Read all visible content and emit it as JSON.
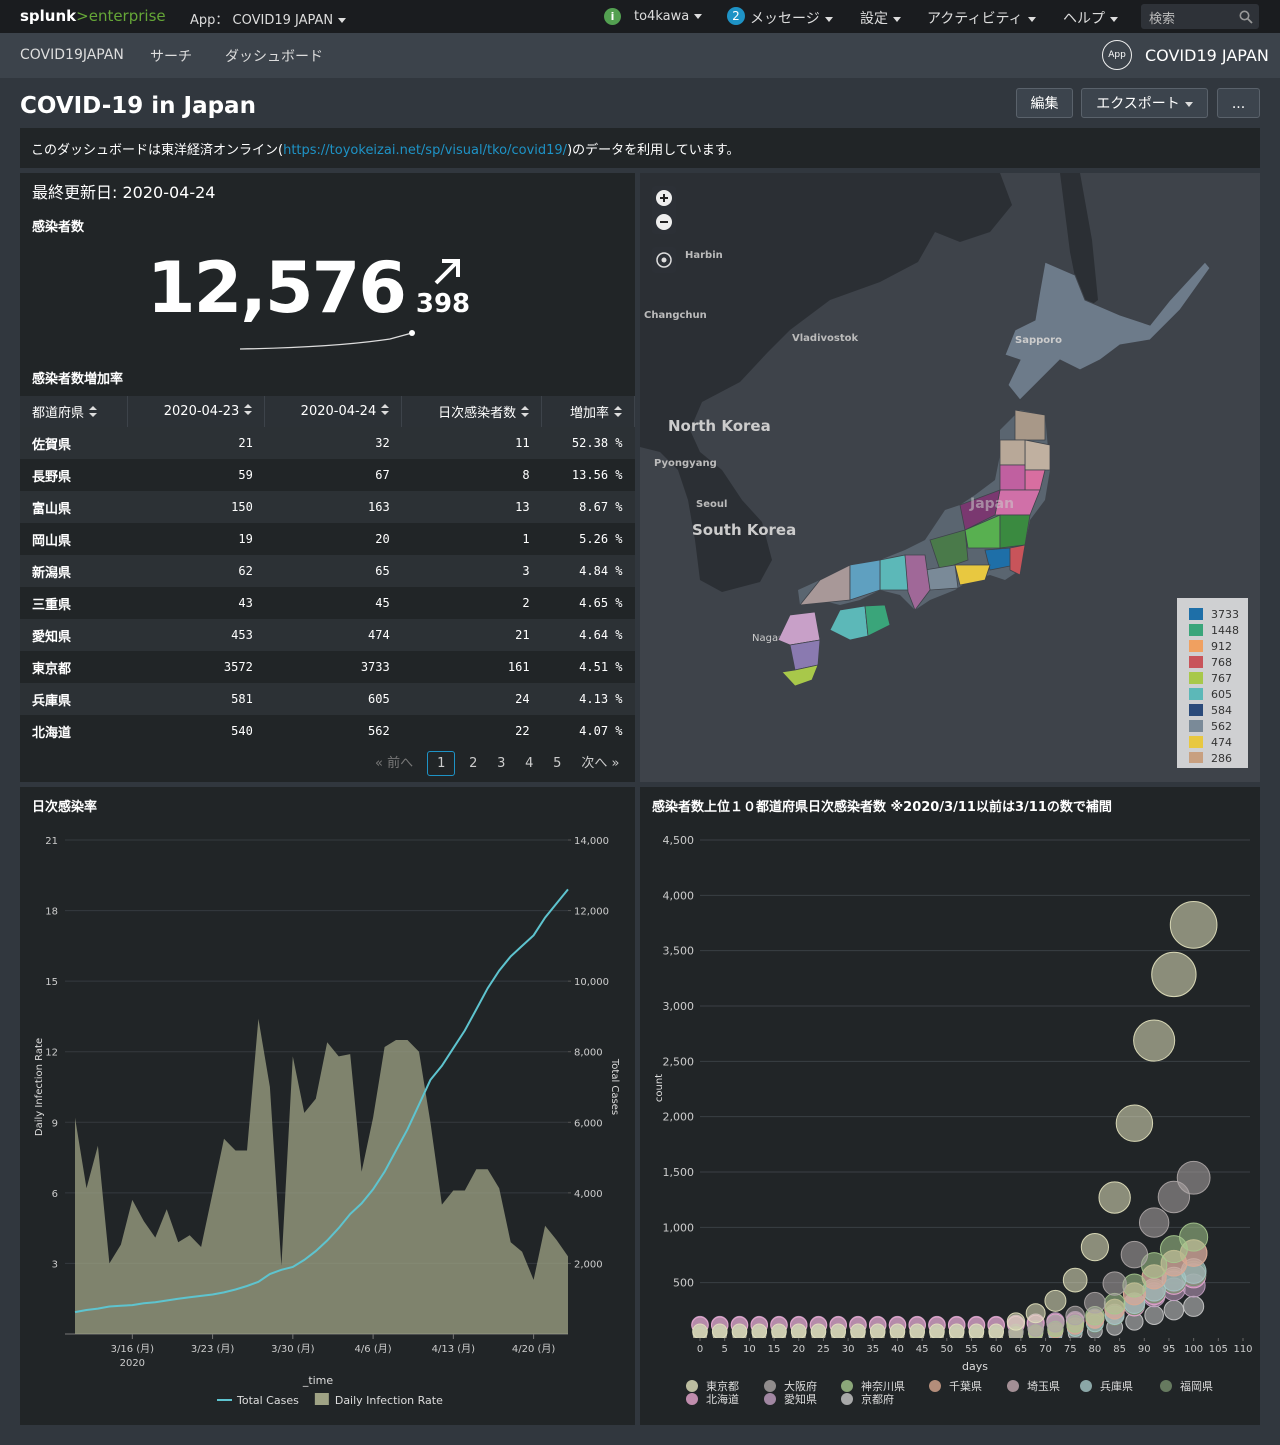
{
  "nav": {
    "logo": [
      "splunk",
      ">enterprise"
    ],
    "app_menu": "App： COVID19 JAPAN",
    "user": "to4kawa",
    "message_count": "2",
    "messages": "メッセージ",
    "settings": "設定",
    "activity": "アクティビティ",
    "help": "ヘルプ",
    "search": "検索"
  },
  "app_bar": {
    "app_name": "COVID19JAPAN",
    "links": [
      "サーチ",
      "ダッシュボード"
    ],
    "app_icon": "App",
    "app_title": "COVID19 JAPAN"
  },
  "header": {
    "title": "COVID-19 in Japan",
    "buttons": [
      "編集",
      "エクスポート",
      "..."
    ]
  },
  "description": {
    "before": "このダッシュボードは東洋経済オンライン(",
    "link": "https://toyokeizai.net/sp/visual/tko/covid19/",
    "after": ")のデータを利用しています。"
  },
  "summary": {
    "updated": "最終更新日: 2020-04-24",
    "label": "感染者数",
    "value": "12,576",
    "delta": "398"
  },
  "table": {
    "title": "感染者数増加率",
    "columns": [
      "都道府県",
      "2020-04-23",
      "2020-04-24",
      "日次感染者数",
      "増加率"
    ],
    "rows": [
      [
        "佐賀県",
        21,
        32,
        11,
        "52.38 %"
      ],
      [
        "長野県",
        59,
        67,
        8,
        "13.56 %"
      ],
      [
        "富山県",
        150,
        163,
        13,
        "8.67 %"
      ],
      [
        "岡山県",
        19,
        20,
        1,
        "5.26 %"
      ],
      [
        "新潟県",
        62,
        65,
        3,
        "4.84 %"
      ],
      [
        "三重県",
        43,
        45,
        2,
        "4.65 %"
      ],
      [
        "愛知県",
        453,
        474,
        21,
        "4.64 %"
      ],
      [
        "東京都",
        3572,
        3733,
        161,
        "4.51 %"
      ],
      [
        "兵庫県",
        581,
        605,
        24,
        "4.13 %"
      ],
      [
        "北海道",
        540,
        562,
        22,
        "4.07 %"
      ]
    ],
    "pagination": {
      "prev": "« 前へ",
      "pages": [
        "1",
        "2",
        "3",
        "4",
        "5"
      ],
      "next": "次へ »"
    }
  },
  "map": {
    "labels": [
      "Harbin",
      "Changchun",
      "Vladivostok",
      "North Korea",
      "Pyongyang",
      "Seoul",
      "South Korea",
      "Japan",
      "Sapporo",
      "Nagasaki"
    ],
    "legend": [
      {
        "value": 3733,
        "color": "#1e6fa8"
      },
      {
        "value": 1448,
        "color": "#3aa57a"
      },
      {
        "value": 912,
        "color": "#f0a060"
      },
      {
        "value": 768,
        "color": "#c8545a"
      },
      {
        "value": 767,
        "color": "#a8c84a"
      },
      {
        "value": 605,
        "color": "#5cb8b8"
      },
      {
        "value": 584,
        "color": "#2a4a7a"
      },
      {
        "value": 562,
        "color": "#7a8a98"
      },
      {
        "value": 474,
        "color": "#e8c840"
      },
      {
        "value": 286,
        "color": "#c8a080"
      }
    ]
  },
  "chart_data": [
    {
      "type": "combo",
      "title": "日次感染率",
      "categories": [
        "2020-03-11",
        "2020-03-12",
        "2020-03-13",
        "2020-03-14",
        "2020-03-15",
        "2020-03-16",
        "2020-03-17",
        "2020-03-18",
        "2020-03-19",
        "2020-03-20",
        "2020-03-21",
        "2020-03-22",
        "2020-03-23",
        "2020-03-24",
        "2020-03-25",
        "2020-03-26",
        "2020-03-27",
        "2020-03-28",
        "2020-03-29",
        "2020-03-30",
        "2020-03-31",
        "2020-04-01",
        "2020-04-02",
        "2020-04-03",
        "2020-04-04",
        "2020-04-05",
        "2020-04-06",
        "2020-04-07",
        "2020-04-08",
        "2020-04-09",
        "2020-04-10",
        "2020-04-11",
        "2020-04-12",
        "2020-04-13",
        "2020-04-14",
        "2020-04-15",
        "2020-04-16",
        "2020-04-17",
        "2020-04-18",
        "2020-04-19",
        "2020-04-20",
        "2020-04-21",
        "2020-04-22",
        "2020-04-23"
      ],
      "series": [
        {
          "name": "Total Cases",
          "color": "#5ec4cf",
          "kind": "line",
          "axis": "y2",
          "values": [
            620,
            680,
            720,
            780,
            800,
            820,
            870,
            900,
            950,
            1000,
            1040,
            1080,
            1120,
            1180,
            1260,
            1360,
            1480,
            1700,
            1820,
            1900,
            2100,
            2350,
            2650,
            3000,
            3400,
            3700,
            4100,
            4600,
            5200,
            5800,
            6500,
            7200,
            7600,
            8100,
            8600,
            9200,
            9800,
            10300,
            10700,
            11000,
            11300,
            11800,
            12200,
            12600
          ]
        },
        {
          "name": "Daily Infection Rate",
          "color": "#9fa385",
          "kind": "area",
          "values": [
            9.2,
            6.2,
            8.0,
            3.0,
            3.8,
            5.7,
            4.8,
            4.1,
            5.3,
            3.9,
            4.2,
            3.7,
            6.0,
            8.3,
            7.8,
            7.8,
            13.4,
            10.5,
            2.9,
            11.8,
            9.4,
            10.0,
            12.4,
            11.8,
            11.9,
            6.9,
            9.2,
            12.2,
            12.5,
            12.5,
            12.0,
            9.0,
            5.5,
            6.1,
            6.1,
            7.0,
            7.0,
            6.2,
            3.9,
            3.5,
            2.3,
            4.6,
            4.0,
            3.3
          ]
        }
      ],
      "ylim": [
        0,
        21
      ],
      "yticks": [
        3,
        6,
        9,
        12,
        15,
        18,
        21
      ],
      "y2lim": [
        0,
        14000
      ],
      "y2ticks": [
        {
          "value": 2000,
          "label": "2,000"
        },
        {
          "value": 4000,
          "label": "4,000"
        },
        {
          "value": 6000,
          "label": "6,000"
        },
        {
          "value": 8000,
          "label": "8,000"
        },
        {
          "value": 10000,
          "label": "10,000"
        },
        {
          "value": 12000,
          "label": "12,000"
        },
        {
          "value": 14000,
          "label": "14,000"
        }
      ],
      "xticks": [
        {
          "value": "2020-03-16",
          "label": "3/16 (月)"
        },
        {
          "value": "2020-03-23",
          "label": "3/23 (月)"
        },
        {
          "value": "2020-03-30",
          "label": "3/30 (月)"
        },
        {
          "value": "2020-04-06",
          "label": "4/6 (月)"
        },
        {
          "value": "2020-04-13",
          "label": "4/13 (月)"
        },
        {
          "value": "2020-04-20",
          "label": "4/20 (月)"
        }
      ],
      "xtick_year": "2020",
      "ylabel": "Daily Infection Rate",
      "y2label": "Total Cases",
      "xlabel": "_time",
      "grid": true
    },
    {
      "type": "bubble",
      "title": "感染者数上位１０都道府県日次感染者数 ※2020/3/11以前は3/11の数で補間",
      "x": [
        0,
        4,
        8,
        12,
        16,
        20,
        24,
        28,
        32,
        36,
        40,
        44,
        48,
        52,
        56,
        60,
        64,
        68,
        72,
        76,
        80,
        84,
        88,
        92,
        96,
        100
      ],
      "series": [
        {
          "name": "東京都",
          "color": "#e4e3bf",
          "values": [
            60,
            60,
            60,
            60,
            60,
            60,
            60,
            60,
            60,
            60,
            60,
            60,
            60,
            60,
            60,
            60,
            149,
            224,
            336,
            523,
            821,
            1269,
            1941,
            2688,
            3285,
            3733
          ]
        },
        {
          "name": "大阪府",
          "color": "#ada6a6",
          "values": [
            50,
            50,
            50,
            50,
            50,
            50,
            50,
            50,
            50,
            50,
            50,
            50,
            50,
            50,
            50,
            50,
            58,
            87,
            130,
            203,
            319,
            492,
            753,
            1043,
            1274,
            1448
          ]
        },
        {
          "name": "神奈川県",
          "color": "#a6c88e",
          "values": [
            40,
            40,
            40,
            40,
            40,
            40,
            40,
            40,
            40,
            40,
            40,
            40,
            40,
            40,
            40,
            40,
            40,
            55,
            82,
            128,
            201,
            310,
            474,
            657,
            803,
            912
          ]
        },
        {
          "name": "千葉県",
          "color": "#d8a890",
          "values": [
            20,
            20,
            20,
            20,
            20,
            20,
            20,
            20,
            20,
            20,
            20,
            20,
            20,
            20,
            20,
            20,
            31,
            46,
            69,
            108,
            169,
            261,
            399,
            553,
            676,
            768
          ]
        },
        {
          "name": "埼玉県",
          "color": "#c4aab2",
          "values": [
            20,
            20,
            20,
            20,
            20,
            20,
            20,
            20,
            20,
            20,
            20,
            20,
            20,
            20,
            20,
            20,
            31,
            46,
            69,
            107,
            169,
            261,
            399,
            552,
            675,
            767
          ]
        },
        {
          "name": "兵庫県",
          "color": "#a6c8c8",
          "values": [
            30,
            30,
            30,
            30,
            30,
            30,
            30,
            30,
            30,
            30,
            30,
            30,
            30,
            30,
            30,
            30,
            30,
            36,
            54,
            85,
            133,
            206,
            315,
            436,
            532,
            605
          ]
        },
        {
          "name": "福岡県",
          "color": "#78906e",
          "values": [
            5,
            5,
            5,
            5,
            5,
            5,
            5,
            5,
            5,
            5,
            5,
            5,
            5,
            5,
            5,
            5,
            23,
            35,
            53,
            82,
            128,
            199,
            304,
            420,
            514,
            584
          ]
        },
        {
          "name": "北海道",
          "color": "#e8a8d0",
          "values": [
            115,
            115,
            115,
            115,
            115,
            115,
            115,
            115,
            115,
            115,
            115,
            115,
            115,
            115,
            115,
            115,
            120,
            130,
            140,
            150,
            170,
            200,
            290,
            400,
            500,
            562
          ]
        },
        {
          "name": "愛知県",
          "color": "#c2a0c2",
          "values": [
            120,
            120,
            120,
            120,
            120,
            120,
            120,
            120,
            120,
            120,
            120,
            120,
            120,
            120,
            120,
            120,
            130,
            140,
            150,
            160,
            180,
            220,
            300,
            380,
            440,
            474
          ]
        },
        {
          "name": "京都府",
          "color": "#cacaca",
          "values": [
            20,
            20,
            20,
            20,
            20,
            20,
            20,
            20,
            20,
            20,
            20,
            20,
            20,
            20,
            20,
            20,
            20,
            20,
            26,
            40,
            63,
            97,
            149,
            206,
            252,
            286
          ]
        }
      ],
      "xlim": [
        0,
        110
      ],
      "xticks": [
        0,
        5,
        10,
        15,
        20,
        25,
        30,
        35,
        40,
        45,
        50,
        55,
        60,
        65,
        70,
        75,
        80,
        85,
        90,
        95,
        100,
        105,
        110
      ],
      "ylim": [
        0,
        4500
      ],
      "yticks": [
        500,
        {
          "value": 1000,
          "label": "1,000"
        },
        {
          "value": 1500,
          "label": "1,500"
        },
        {
          "value": 2000,
          "label": "2,000"
        },
        {
          "value": 2500,
          "label": "2,500"
        },
        {
          "value": 3000,
          "label": "3,000"
        },
        {
          "value": 3500,
          "label": "3,500"
        },
        {
          "value": 4000,
          "label": "4,000"
        },
        {
          "value": 4500,
          "label": "4,500"
        }
      ],
      "xlabel": "days",
      "ylabel": "count",
      "grid": true
    }
  ]
}
